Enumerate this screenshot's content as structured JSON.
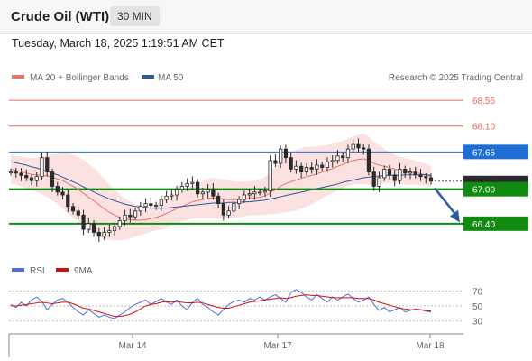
{
  "header": {
    "instrument": "Crude Oil (WTI)",
    "timeframe": "30 MIN"
  },
  "timestamp": "Tuesday, March 18, 2025 1:19:51 AM CET",
  "legend": {
    "ma_bb": "MA 20 + Bollinger Bands",
    "ma50": "MA 50",
    "credit": "Research © 2025 Trading Central"
  },
  "rsi_legend": {
    "rsi": "RSI",
    "ma9": "9MA"
  },
  "colors": {
    "ma_bb": "#e8736c",
    "ma50": "#2d5a9b",
    "resistance": "#e36b5e",
    "pivot": "#1f6ed4",
    "support": "#118a11",
    "price": "#2b2b2b",
    "rsi": "#4f6fd6",
    "rsi_ma": "#d01010",
    "arrow": "#2d5a9b",
    "bb_fill": "#fbdcdc"
  },
  "chart_data": {
    "type": "line",
    "price_range": [
      65.8,
      68.85
    ],
    "levels": [
      {
        "value": 68.55,
        "label": "68.55",
        "kind": "resistance"
      },
      {
        "value": 68.1,
        "label": "68.10",
        "kind": "resistance"
      },
      {
        "value": 67.65,
        "label": "67.65",
        "kind": "pivot"
      },
      {
        "value": 67.14,
        "label": "67.14",
        "kind": "price"
      },
      {
        "value": 67.0,
        "label": "67.00",
        "kind": "support"
      },
      {
        "value": 66.4,
        "label": "66.40",
        "kind": "support"
      }
    ],
    "x_ticks": [
      "Mar 14",
      "Mar 17",
      "Mar 18"
    ],
    "close": [
      67.3,
      67.28,
      67.24,
      67.2,
      67.15,
      67.22,
      67.55,
      67.3,
      67.05,
      66.95,
      66.9,
      66.7,
      66.62,
      66.55,
      66.3,
      66.4,
      66.25,
      66.18,
      66.25,
      66.28,
      66.35,
      66.45,
      66.55,
      66.52,
      66.62,
      66.7,
      66.75,
      66.72,
      66.72,
      66.82,
      66.88,
      66.9,
      67.0,
      67.05,
      67.1,
      67.12,
      66.92,
      66.95,
      67.0,
      66.88,
      66.75,
      66.55,
      66.62,
      66.75,
      66.82,
      66.9,
      66.92,
      66.95,
      66.95,
      66.97,
      67.5,
      67.45,
      67.7,
      67.55,
      67.35,
      67.4,
      67.3,
      67.38,
      67.35,
      67.42,
      67.38,
      67.48,
      67.5,
      67.58,
      67.55,
      67.7,
      67.78,
      67.72,
      67.7,
      67.3,
      67.05,
      67.2,
      67.35,
      67.25,
      67.15,
      67.35,
      67.28,
      67.3,
      67.25,
      67.22,
      67.2,
      67.14
    ],
    "ma20": [
      67.35,
      67.33,
      67.31,
      67.28,
      67.26,
      67.25,
      67.24,
      67.23,
      67.21,
      67.18,
      67.15,
      67.1,
      67.05,
      67.0,
      66.93,
      66.86,
      66.8,
      66.73,
      66.66,
      66.6,
      66.55,
      66.51,
      66.48,
      66.47,
      66.46,
      66.46,
      66.47,
      66.49,
      66.51,
      66.54,
      66.58,
      66.62,
      66.66,
      66.7,
      66.74,
      66.78,
      66.8,
      66.82,
      66.84,
      66.85,
      66.84,
      66.83,
      66.82,
      66.82,
      66.82,
      66.83,
      66.84,
      66.85,
      66.86,
      66.88,
      66.94,
      66.99,
      67.05,
      67.1,
      67.13,
      67.16,
      67.19,
      67.22,
      67.24,
      67.27,
      67.3,
      67.33,
      67.36,
      67.4,
      67.43,
      67.47,
      67.5,
      67.52,
      67.53,
      67.5,
      67.45,
      67.42,
      67.4,
      67.38,
      67.35,
      67.33,
      67.31,
      67.3,
      67.29,
      67.27,
      67.25,
      67.22
    ],
    "ma50": [
      67.48,
      67.46,
      67.44,
      67.42,
      67.39,
      67.37,
      67.34,
      67.31,
      67.28,
      67.25,
      67.21,
      67.17,
      67.13,
      67.09,
      67.04,
      67.0,
      66.95,
      66.91,
      66.87,
      66.83,
      66.8,
      66.77,
      66.74,
      66.72,
      66.7,
      66.69,
      66.68,
      66.67,
      66.67,
      66.67,
      66.67,
      66.68,
      66.69,
      66.7,
      66.71,
      66.72,
      66.73,
      66.74,
      66.75,
      66.76,
      66.76,
      66.76,
      66.77,
      66.77,
      66.77,
      66.78,
      66.78,
      66.79,
      66.8,
      66.81,
      66.83,
      66.85,
      66.87,
      66.89,
      66.91,
      66.93,
      66.95,
      66.97,
      66.99,
      67.01,
      67.03,
      67.05,
      67.07,
      67.09,
      67.12,
      67.14,
      67.16,
      67.18,
      67.2,
      67.21,
      67.22,
      67.23,
      67.23,
      67.24,
      67.24,
      67.24,
      67.25,
      67.25,
      67.25,
      67.25,
      67.25,
      67.24
    ],
    "bb_width": [
      0.25,
      0.25,
      0.26,
      0.27,
      0.28,
      0.3,
      0.33,
      0.36,
      0.4,
      0.44,
      0.48,
      0.52,
      0.55,
      0.57,
      0.58,
      0.58,
      0.57,
      0.55,
      0.52,
      0.48,
      0.44,
      0.4,
      0.36,
      0.32,
      0.28,
      0.26,
      0.24,
      0.23,
      0.23,
      0.24,
      0.25,
      0.26,
      0.26,
      0.26,
      0.27,
      0.28,
      0.3,
      0.32,
      0.34,
      0.35,
      0.35,
      0.34,
      0.33,
      0.32,
      0.31,
      0.3,
      0.3,
      0.3,
      0.31,
      0.33,
      0.37,
      0.42,
      0.46,
      0.5,
      0.52,
      0.53,
      0.53,
      0.52,
      0.5,
      0.48,
      0.46,
      0.44,
      0.43,
      0.42,
      0.41,
      0.41,
      0.42,
      0.43,
      0.44,
      0.42,
      0.38,
      0.34,
      0.3,
      0.27,
      0.25,
      0.24,
      0.23,
      0.22,
      0.21,
      0.2,
      0.19,
      0.18
    ],
    "rsi": [
      52,
      48,
      55,
      50,
      58,
      62,
      56,
      45,
      52,
      58,
      60,
      55,
      48,
      42,
      38,
      45,
      40,
      35,
      38,
      35,
      33,
      38,
      42,
      48,
      52,
      55,
      58,
      52,
      56,
      60,
      55,
      52,
      58,
      50,
      45,
      55,
      60,
      52,
      48,
      42,
      38,
      45,
      52,
      56,
      58,
      55,
      60,
      58,
      62,
      58,
      62,
      65,
      60,
      55,
      68,
      72,
      68,
      62,
      58,
      65,
      60,
      55,
      62,
      58,
      62,
      66,
      60,
      55,
      58,
      62,
      52,
      44,
      48,
      42,
      45,
      48,
      42,
      44,
      46,
      45,
      43,
      42
    ],
    "rsi_ma": [
      50,
      50,
      51,
      52,
      53,
      54,
      55,
      54,
      53,
      54,
      55,
      55,
      53,
      50,
      47,
      46,
      44,
      42,
      40,
      38,
      36,
      36,
      37,
      39,
      42,
      46,
      50,
      52,
      53,
      55,
      56,
      55,
      56,
      55,
      54,
      54,
      55,
      54,
      52,
      50,
      48,
      47,
      47,
      49,
      51,
      53,
      55,
      56,
      57,
      58,
      59,
      60,
      61,
      60,
      61,
      63,
      64,
      65,
      64,
      64,
      63,
      62,
      61,
      61,
      61,
      61,
      61,
      60,
      60,
      60,
      58,
      55,
      53,
      51,
      49,
      47,
      46,
      45,
      45,
      45,
      44,
      43
    ],
    "rsi_ticks": [
      "70",
      "50",
      "30"
    ],
    "rsi_range": [
      15,
      85
    ]
  }
}
